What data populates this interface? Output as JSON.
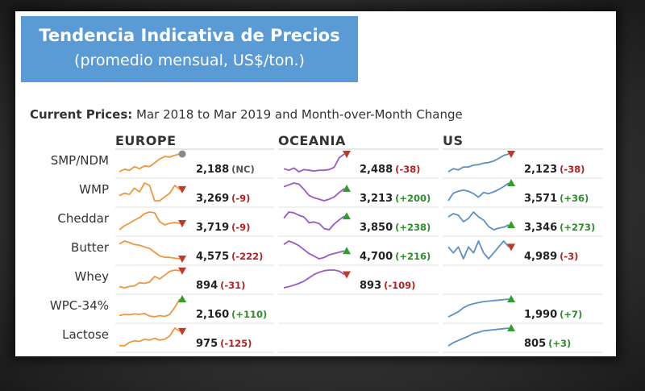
{
  "banner": {
    "title": "Tendencia Indicativa de Precios",
    "subtitle": "(promedio mensual, US$/ton.)"
  },
  "header": {
    "bold": "Current Prices:",
    "text": "Mar 2018 to Mar 2019 and Month-over-Month Change"
  },
  "colors": {
    "europe": "#f0963c",
    "oceania": "#9b59c8",
    "us": "#5b8fc7",
    "up": "#2e9e2e",
    "down": "#c0392b",
    "nc": "#888888"
  },
  "chart_data": {
    "type": "sparkline-table",
    "title": "Current Prices: Mar 2018 to Mar 2019 and Month-over-Month Change",
    "regions": [
      "EUROPE",
      "OCEANIA",
      "US"
    ],
    "products": [
      "SMP/NDM",
      "WMP",
      "Cheddar",
      "Butter",
      "Whey",
      "WPC-34%",
      "Lactose"
    ],
    "cells": [
      [
        {
          "value": "2,188",
          "change": "(NC)",
          "dir": "nc",
          "series": [
            2,
            3,
            2.5,
            4,
            3.2,
            4.3,
            4,
            5.5,
            7,
            8,
            7.8,
            8.5,
            9
          ]
        },
        {
          "value": "2,488",
          "change": "(-38)",
          "dir": "down",
          "series": [
            5,
            4.6,
            5.2,
            4.2,
            4.8,
            4.6,
            4.4,
            4.6,
            4.6,
            4.8,
            5.4,
            8,
            9
          ]
        },
        {
          "value": "2,123",
          "change": "(-38)",
          "dir": "down",
          "series": [
            2,
            3,
            2.6,
            3.6,
            3.6,
            4.2,
            4.4,
            4.9,
            5.1,
            5.6,
            6.5,
            7.5,
            8
          ]
        }
      ],
      [
        {
          "value": "3,269",
          "change": "(-9)",
          "dir": "down",
          "series": [
            6,
            6.2,
            6.1,
            6.6,
            6.3,
            7,
            6.8,
            5.6,
            5.6,
            5.9,
            6.2,
            6.8,
            6.5
          ]
        },
        {
          "value": "3,213",
          "change": "(+200)",
          "dir": "up",
          "series": [
            6.5,
            7,
            7.5,
            7.2,
            5.8,
            4.2,
            3.6,
            3.2,
            2.8,
            3.2,
            3.8,
            5,
            6
          ]
        },
        {
          "value": "3,571",
          "change": "(+36)",
          "dir": "up",
          "series": [
            5,
            6.3,
            6.6,
            6.8,
            6.6,
            6.2,
            5.6,
            6.4,
            6.2,
            6.5,
            6.9,
            7.4,
            8
          ]
        }
      ],
      [
        {
          "value": "3,719",
          "change": "(-9)",
          "dir": "down",
          "series": [
            4,
            4.5,
            4.8,
            5.2,
            5.5,
            6,
            6.2,
            6.1,
            5,
            4.6,
            4.8,
            4.9,
            4.8
          ]
        },
        {
          "value": "3,850",
          "change": "(+238)",
          "dir": "up",
          "series": [
            5.5,
            7,
            6.8,
            6.2,
            5.8,
            4.4,
            4.6,
            4.2,
            3,
            2.7,
            4.1,
            5.1,
            6
          ]
        },
        {
          "value": "3,346",
          "change": "(+273)",
          "dir": "up",
          "series": [
            5.5,
            6.5,
            6,
            4,
            5,
            7,
            5.5,
            4.5,
            2.5,
            1.5,
            2,
            2.3,
            3
          ]
        }
      ],
      [
        {
          "value": "4,575",
          "change": "(-222)",
          "dir": "down",
          "series": [
            8,
            9,
            8.5,
            7.8,
            7.6,
            7,
            6.5,
            5.2,
            4,
            3.5,
            3.5,
            3.2,
            3
          ]
        },
        {
          "value": "4,700",
          "change": "(+216)",
          "dir": "up",
          "series": [
            5,
            5.5,
            5.2,
            4.8,
            4.2,
            3.6,
            3.2,
            2.8,
            3,
            3.4,
            3.6,
            3.8,
            4
          ]
        },
        {
          "value": "4,989",
          "change": "(-3)",
          "dir": "down",
          "series": [
            5,
            4.8,
            5,
            4.6,
            5,
            4.8,
            5.2,
            4.8,
            4.6,
            4.8,
            5,
            5.2,
            5
          ]
        }
      ],
      [
        {
          "value": "894",
          "change": "(-31)",
          "dir": "down",
          "series": [
            4,
            3.8,
            4,
            4.1,
            4.6,
            4.5,
            4.7,
            5.6,
            5.2,
            5.8,
            6.4,
            6.6,
            6.5
          ]
        },
        {
          "value": "893",
          "change": "(-109)",
          "dir": "down",
          "series": [
            1,
            1.5,
            2.2,
            3,
            4,
            5.5,
            7,
            8,
            8.7,
            9,
            9,
            8.5,
            7
          ]
        },
        {
          "value": "",
          "change": "",
          "dir": "",
          "series": []
        }
      ],
      [
        {
          "value": "2,160",
          "change": "(+110)",
          "dir": "up",
          "series": [
            2.5,
            2.8,
            2.7,
            2.9,
            2.8,
            3,
            2.4,
            2.2,
            2.5,
            2.3,
            2.8,
            4.5,
            6.5
          ]
        },
        {
          "value": "",
          "change": "",
          "dir": "",
          "series": []
        },
        {
          "value": "1,990",
          "change": "(+7)",
          "dir": "up",
          "series": [
            2,
            2.5,
            3,
            3.8,
            4.3,
            4.6,
            4.8,
            5,
            5.1,
            5.2,
            5.3,
            5.4,
            5.5
          ]
        }
      ],
      [
        {
          "value": "975",
          "change": "(-125)",
          "dir": "down",
          "series": [
            2.5,
            2.4,
            3.5,
            4,
            3.8,
            4.5,
            4.2,
            4.8,
            4.2,
            4.5,
            5.5,
            8,
            7
          ]
        },
        {
          "value": "",
          "change": "",
          "dir": "",
          "series": []
        },
        {
          "value": "805",
          "change": "(+3)",
          "dir": "up",
          "series": [
            1,
            1.6,
            2,
            2.4,
            2.8,
            3.3,
            3.5,
            3.8,
            3.9,
            4,
            4.1,
            4.2,
            4.3
          ]
        }
      ]
    ]
  }
}
